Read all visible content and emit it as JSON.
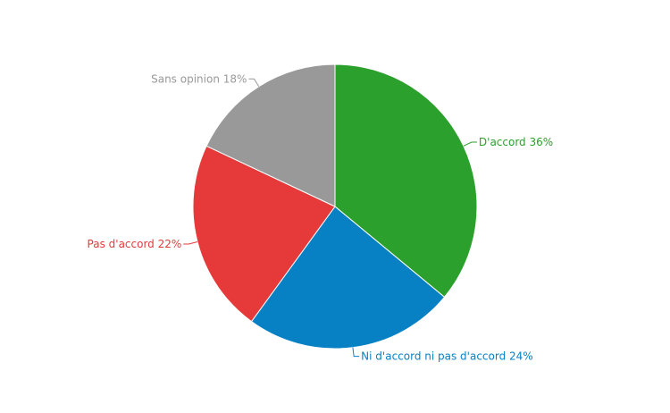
{
  "chart_data": {
    "type": "pie",
    "categories": [
      "D'accord",
      "Ni d'accord ni pas d'accord",
      "Pas d'accord",
      "Sans opinion"
    ],
    "values": [
      36,
      24,
      22,
      18
    ],
    "value_labels": [
      "36%",
      "24%",
      "22%",
      "18%"
    ],
    "colors": [
      "#2ca02c",
      "#0881c4",
      "#e5393a",
      "#999999"
    ]
  }
}
